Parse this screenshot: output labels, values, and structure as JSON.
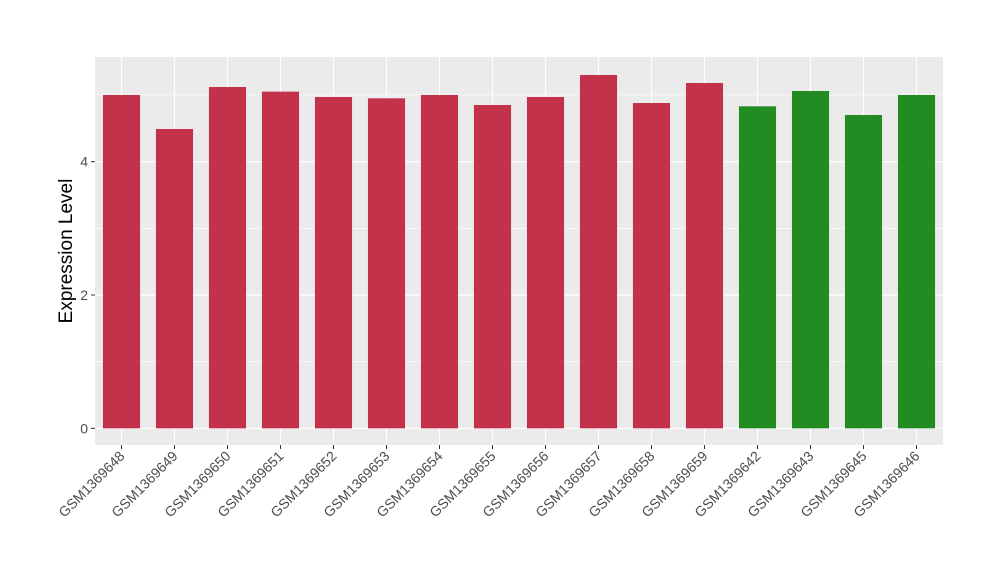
{
  "chart_data": {
    "type": "bar",
    "title": "",
    "xlabel": "",
    "ylabel": "Expression Level",
    "categories": [
      "GSM1369648",
      "GSM1369649",
      "GSM1369650",
      "GSM1369651",
      "GSM1369652",
      "GSM1369653",
      "GSM1369654",
      "GSM1369655",
      "GSM1369656",
      "GSM1369657",
      "GSM1369658",
      "GSM1369659",
      "GSM1369642",
      "GSM1369643",
      "GSM1369645",
      "GSM1369646"
    ],
    "values": [
      5.0,
      4.49,
      5.12,
      5.05,
      4.97,
      4.95,
      5.0,
      4.85,
      4.97,
      5.3,
      4.88,
      5.18,
      4.83,
      5.06,
      4.7,
      5.0
    ],
    "bar_colors": [
      "#c4314b",
      "#c4314b",
      "#c4314b",
      "#c4314b",
      "#c4314b",
      "#c4314b",
      "#c4314b",
      "#c4314b",
      "#c4314b",
      "#c4314b",
      "#c4314b",
      "#c4314b",
      "#228b22",
      "#228b22",
      "#228b22",
      "#228b22"
    ],
    "yticks": [
      0,
      2,
      4
    ],
    "ylim": [
      -0.25,
      5.57
    ],
    "grid": true,
    "panel_background": "#ebebeb"
  }
}
